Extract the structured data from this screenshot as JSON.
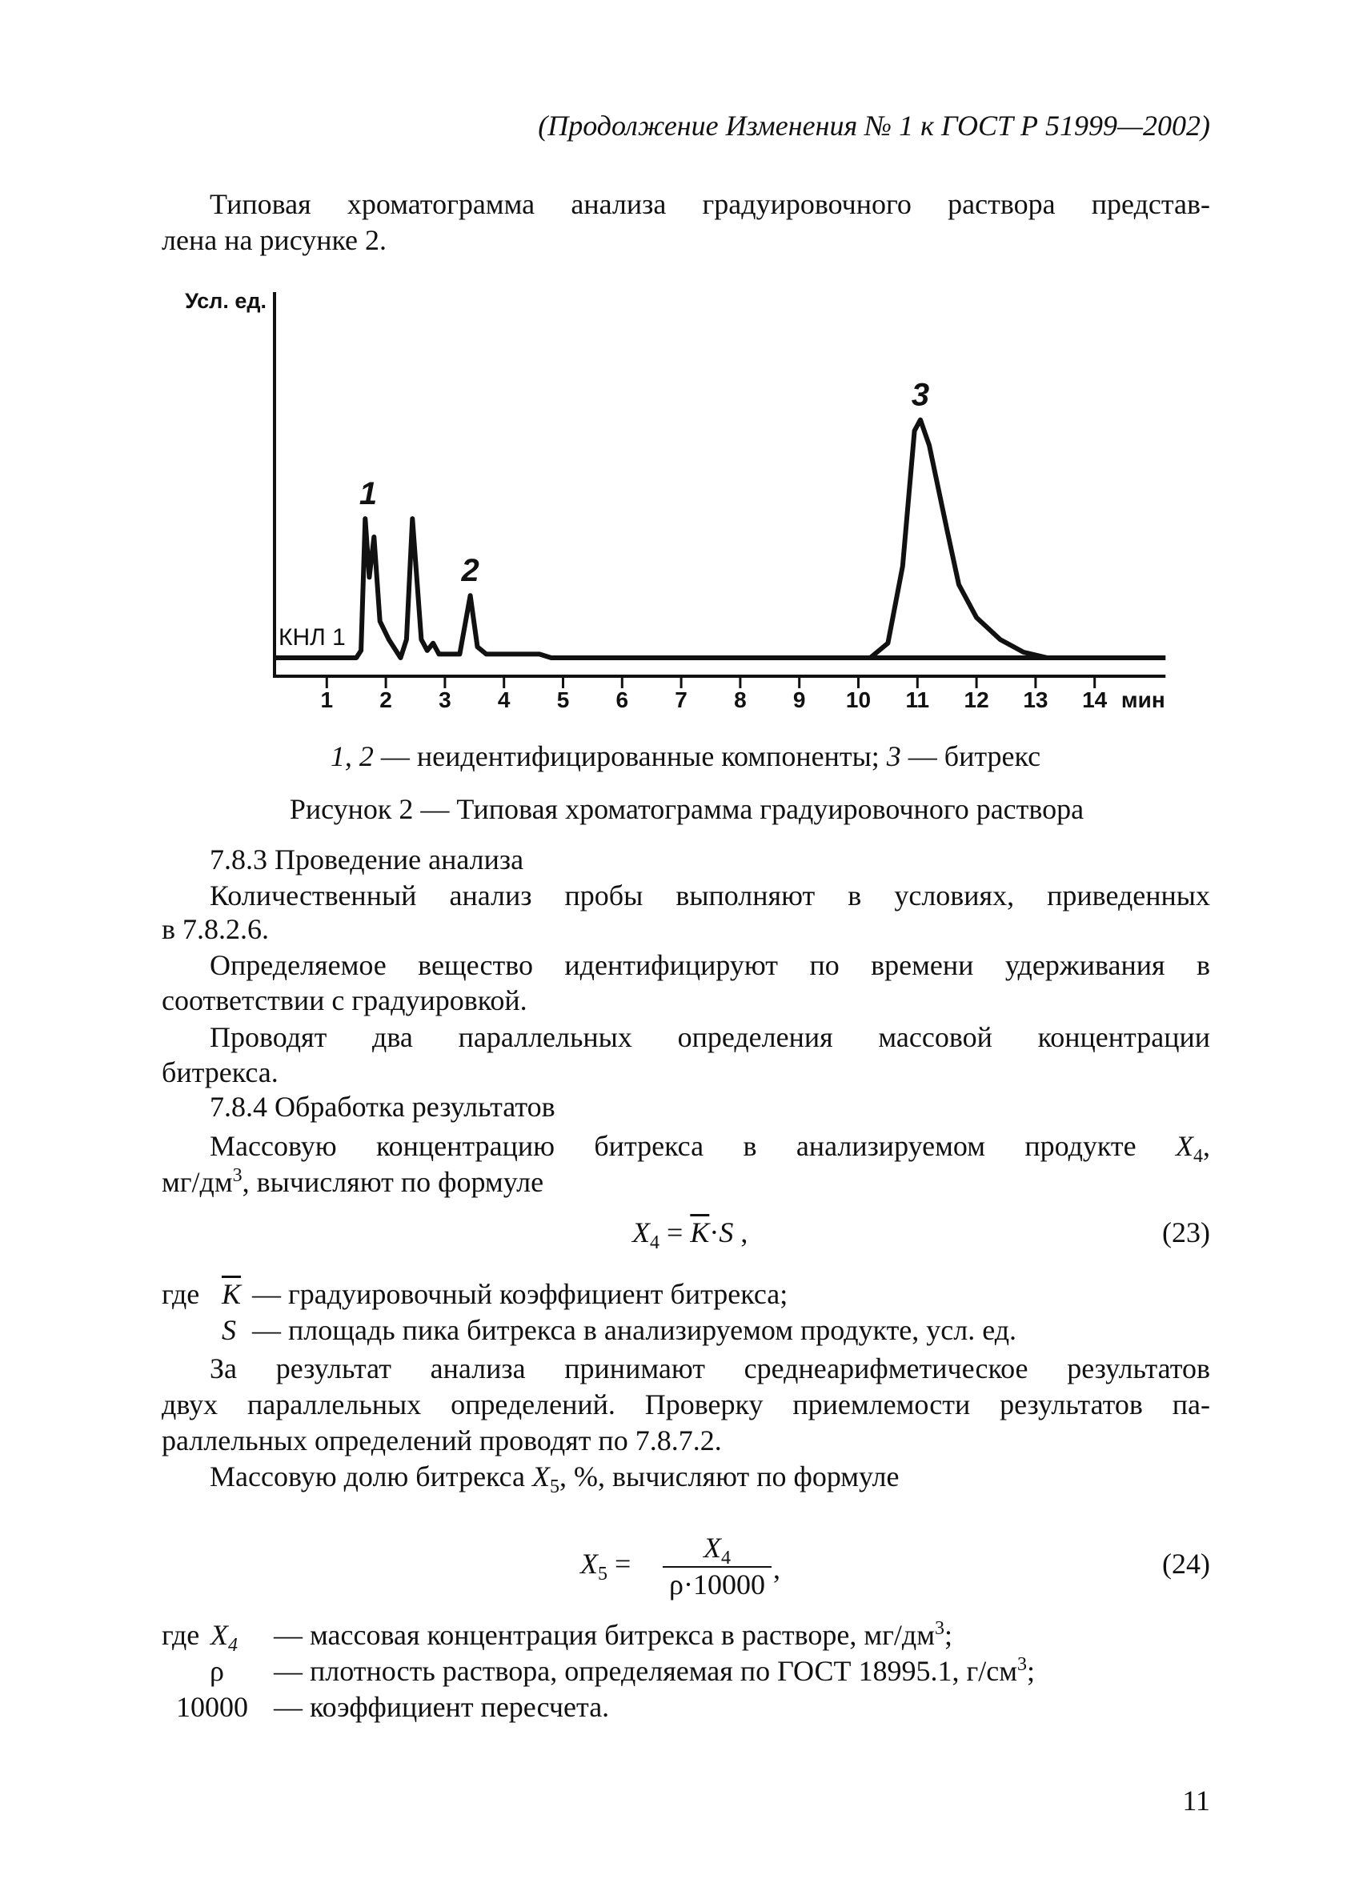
{
  "header": "(Продолжение Изменения № 1 к ГОСТ Р 51999—2002)",
  "intro": [
    "Типовая хроматограмма анализа градуировочного раствора представ-",
    "лена на рисунке 2."
  ],
  "chart_data": {
    "type": "line",
    "title": "",
    "ylabel": "Усл. ед.",
    "xlabel": "мин",
    "channel_label": "КНЛ 1",
    "xlim": [
      0,
      15.2
    ],
    "ylim": [
      0,
      100
    ],
    "x_ticks": [
      "1",
      "2",
      "3",
      "4",
      "5",
      "6",
      "7",
      "8",
      "9",
      "10",
      "11",
      "12",
      "13",
      "14"
    ],
    "grid": false,
    "series": [
      {
        "points": [
          [
            0.12,
            0
          ],
          [
            1.5,
            0
          ],
          [
            1.58,
            2
          ],
          [
            1.65,
            38
          ],
          [
            1.72,
            22
          ],
          [
            1.8,
            33
          ],
          [
            1.9,
            10
          ],
          [
            2.05,
            5
          ],
          [
            2.25,
            0
          ],
          [
            2.35,
            5
          ],
          [
            2.45,
            38
          ],
          [
            2.6,
            5
          ],
          [
            2.7,
            2
          ],
          [
            2.8,
            4
          ],
          [
            2.9,
            1
          ],
          [
            3.25,
            1
          ],
          [
            3.43,
            17
          ],
          [
            3.55,
            3
          ],
          [
            3.7,
            1
          ],
          [
            4.6,
            1
          ],
          [
            4.8,
            0
          ],
          [
            10.2,
            0
          ],
          [
            10.5,
            4
          ],
          [
            10.75,
            25
          ],
          [
            10.95,
            62
          ],
          [
            11.05,
            65
          ],
          [
            11.2,
            58
          ],
          [
            11.5,
            35
          ],
          [
            11.7,
            20
          ],
          [
            12.0,
            11
          ],
          [
            12.4,
            5
          ],
          [
            12.8,
            1.5
          ],
          [
            13.2,
            0
          ],
          [
            15.2,
            0
          ]
        ]
      }
    ],
    "peak_labels": [
      {
        "text": "1",
        "x": 1.7,
        "y": 38
      },
      {
        "text": "2",
        "x": 3.43,
        "y": 17
      },
      {
        "text": "3",
        "x": 11.05,
        "y": 65
      }
    ]
  },
  "legend": {
    "ids1": "1, 2",
    "t1": " — неидентифицированные компоненты; ",
    "ids2": "3",
    "t2": " — битрекс"
  },
  "caption": "Рисунок 2 — Типовая хроматограмма градуировочного раствора",
  "s783": {
    "heading": "7.8.3 Проведение анализа",
    "p1": [
      "Количественный анализ пробы выполняют в условиях, приведенных",
      "в 7.8.2.6."
    ],
    "p2": [
      "Определяемое вещество идентифицируют по времени удерживания в",
      "соответствии с градуировкой."
    ],
    "p3": [
      "Проводят два параллельных определения массовой концентрации",
      "битрекса."
    ]
  },
  "s784": {
    "heading": "7.8.4 Обработка результатов",
    "p1a": "Массовую концентрацию битрекса в анализируемом продукте ",
    "p1var": "X",
    "p1sub": "4",
    "p1end": ",",
    "p2a": "мг/дм",
    "p2sup": "3",
    "p2b": ", вычисляют по формуле",
    "f23": {
      "lhs": "X",
      "lhs_sub": "4",
      "eq": " = ",
      "k": "K",
      "dot": "·",
      "s": "S",
      "tail": " ,",
      "num": "(23)"
    },
    "defs1": [
      {
        "lead": "где",
        "term": "K",
        "text": "— градуировочный коэффициент битрекса;"
      },
      {
        "term": "S",
        "text": "— площадь пика битрекса в анализируемом продукте, усл. ед."
      }
    ],
    "p3": [
      "За результат анализа принимают среднеарифметическое результатов",
      "двух параллельных определений. Проверку приемлемости результатов па-",
      "раллельных определений проводят по 7.8.7.2."
    ],
    "p4a": "Массовую долю битрекса ",
    "p4var": "X",
    "p4sub": "5",
    "p4b": ", %, вычисляют по формуле",
    "f24": {
      "lhs": "X",
      "lhs_sub": "5",
      "eq": " = ",
      "num_var": "X",
      "num_sub": "4",
      "den": "ρ·10000",
      "tail": ",",
      "num": "(24)"
    },
    "defs2": [
      {
        "lead": "где",
        "term": "X",
        "term_sub": "4",
        "text_a": "— массовая концентрация битрекса в растворе, мг/дм",
        "sup": "3",
        "text_b": ";"
      },
      {
        "term": "ρ",
        "text_a": "— плотность раствора, определяемая по ГОСТ 18995.1, г/см",
        "sup": "3",
        "text_b": ";"
      },
      {
        "term": "10000",
        "text": "— коэффициент пересчета."
      }
    ]
  },
  "page_number": "11"
}
